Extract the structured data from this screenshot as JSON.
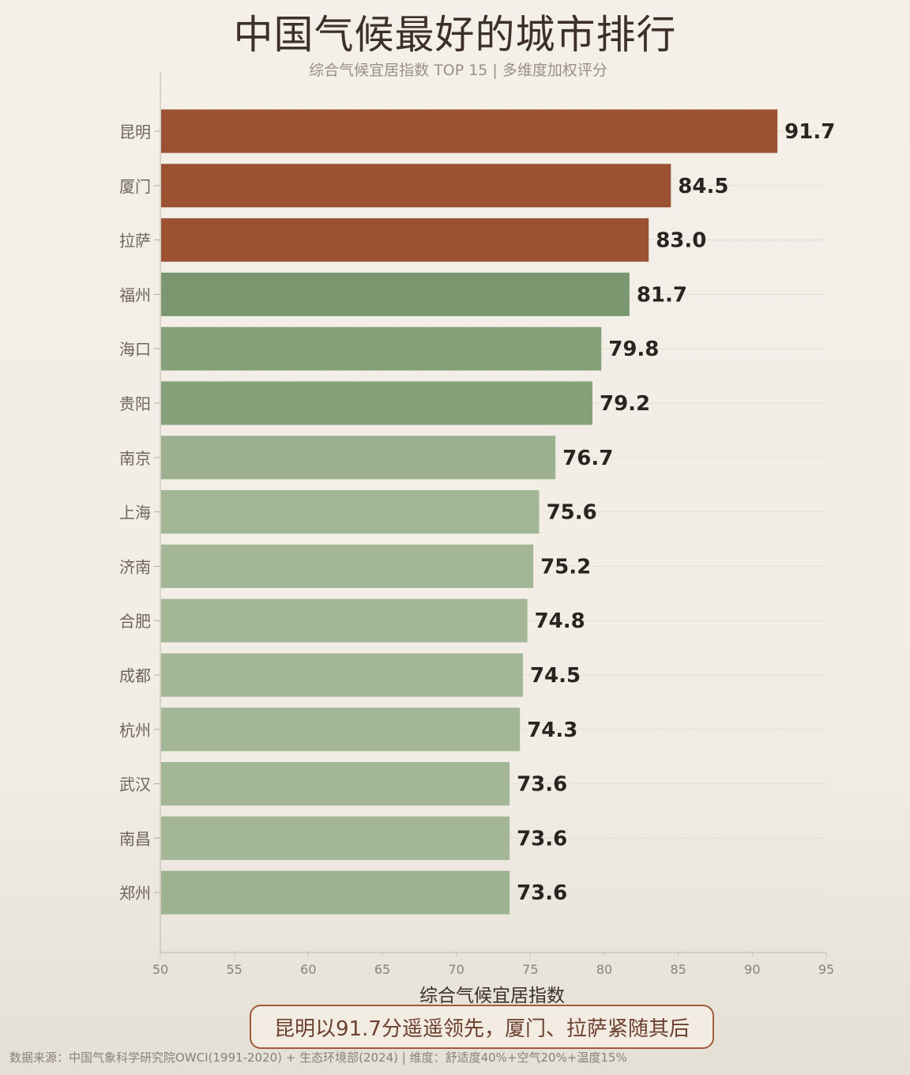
{
  "chart_data": {
    "type": "bar",
    "orientation": "horizontal",
    "title": "中国气候最好的城市排行",
    "subtitle": "综合气候宜居指数 TOP 15 | 多维度加权评分",
    "xlabel": "综合气候宜居指数",
    "ylabel": "",
    "xlim": [
      50,
      95
    ],
    "xticks": [
      "50",
      "55",
      "60",
      "65",
      "70",
      "75",
      "80",
      "85",
      "90",
      "95"
    ],
    "categories": [
      "昆明",
      "厦门",
      "拉萨",
      "福州",
      "海口",
      "贵阳",
      "南京",
      "上海",
      "济南",
      "合肥",
      "成都",
      "杭州",
      "武汉",
      "南昌",
      "郑州"
    ],
    "values": [
      91.7,
      84.5,
      83.0,
      81.7,
      79.8,
      79.2,
      76.7,
      75.6,
      75.2,
      74.8,
      74.5,
      74.3,
      73.6,
      73.6,
      73.6
    ],
    "value_labels": [
      "91.7",
      "84.5",
      "83.0",
      "81.7",
      "79.8",
      "79.2",
      "76.7",
      "75.6",
      "75.2",
      "74.8",
      "74.5",
      "74.3",
      "73.6",
      "73.6",
      "73.6"
    ],
    "bar_colors": [
      "#9b5132",
      "#9b5132",
      "#9b5132",
      "#7b9770",
      "#86a17a",
      "#86a17a",
      "#9cb08f",
      "#a3b696",
      "#a3b696",
      "#a3b696",
      "#a3b696",
      "#a3b696",
      "#a3b696",
      "#a3b696",
      "#9db28f"
    ],
    "grid": true,
    "annotation": "昆明以91.7分遥遥领先，厦门、拉萨紧随其后",
    "source": "数据来源：中国气象科学研究院OWCI(1991-2020) + 生态环境部(2024) | 维度：舒适度40%+空气20%+温度15%"
  }
}
